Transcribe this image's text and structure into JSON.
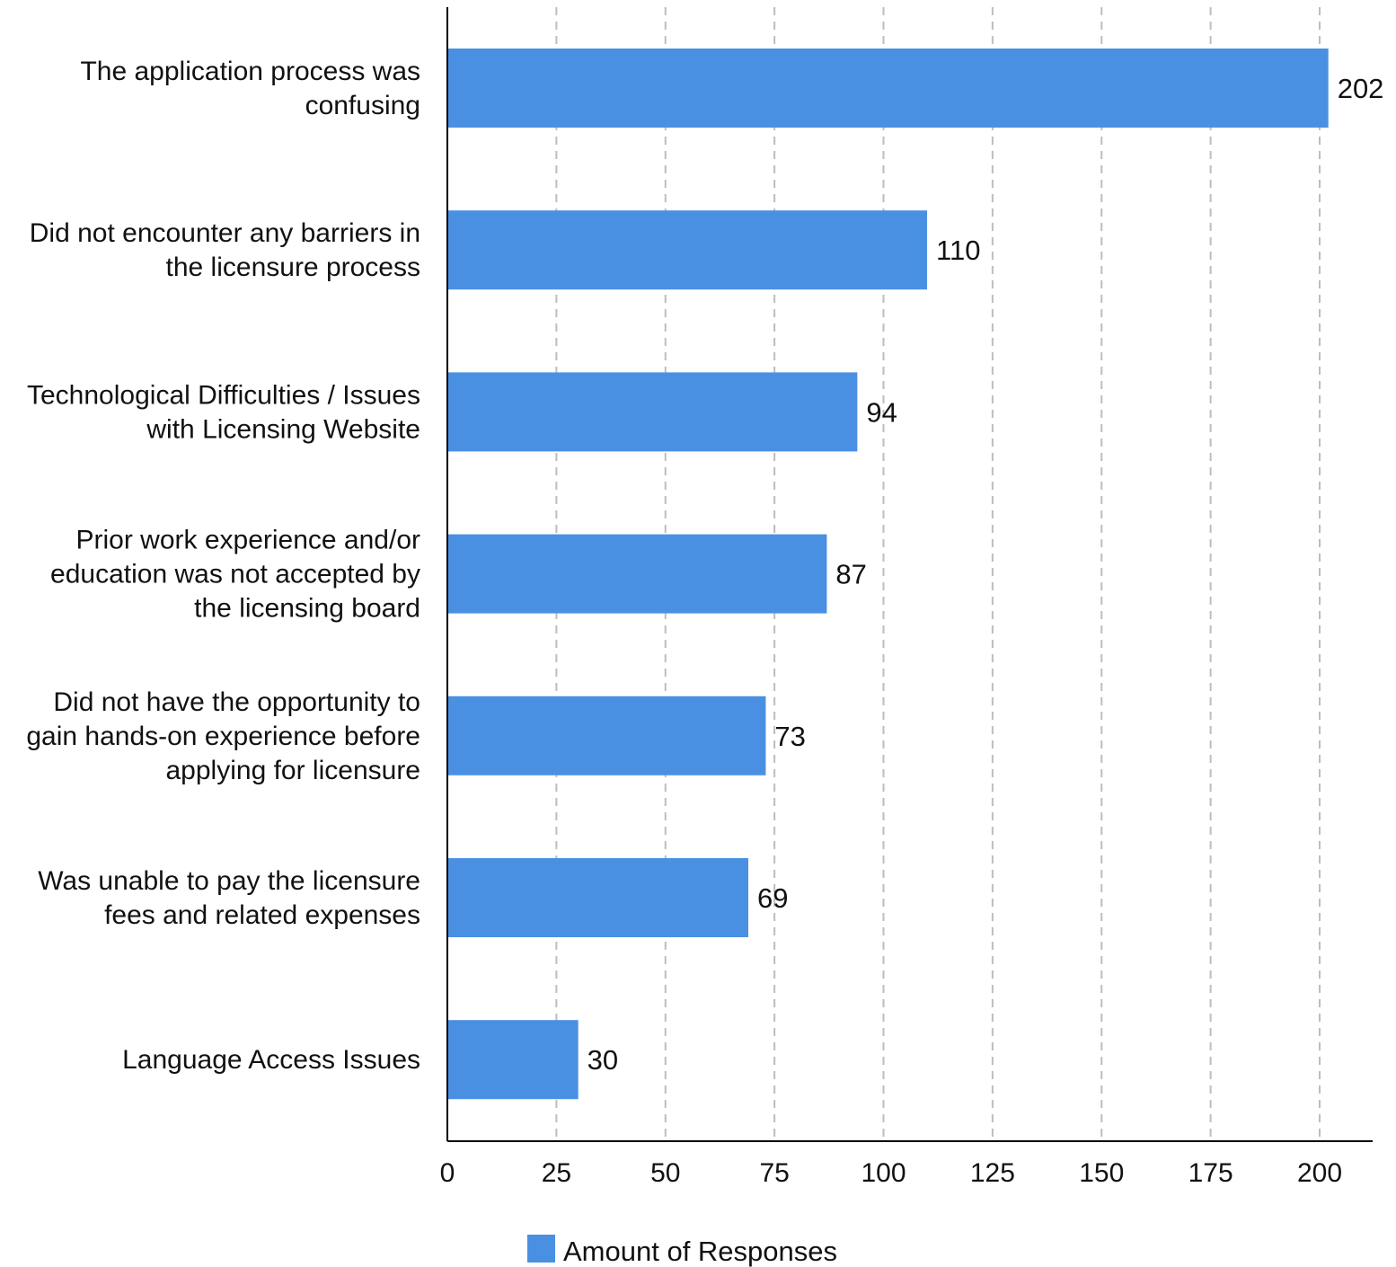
{
  "chart_data": {
    "type": "bar",
    "orientation": "horizontal",
    "categories": [
      [
        "The application process was",
        "confusing"
      ],
      [
        "Did not encounter any barriers in",
        "the licensure process"
      ],
      [
        "Technological Difficulties / Issues",
        "with Licensing Website"
      ],
      [
        "Prior work experience and/or",
        "education was not accepted by",
        "the licensing board"
      ],
      [
        "Did not have the opportunity to",
        "gain hands-on experience before",
        "applying for licensure"
      ],
      [
        "Was unable to pay the licensure",
        "fees and related expenses"
      ],
      [
        "Language Access Issues"
      ]
    ],
    "series": [
      {
        "name": "Amount of Responses",
        "color": "#4a90e2",
        "values": [
          202,
          110,
          94,
          87,
          73,
          69,
          30
        ]
      }
    ],
    "xticks": [
      0,
      25,
      50,
      75,
      100,
      125,
      150,
      175,
      200
    ],
    "xlim": [
      0,
      212
    ],
    "grid": true,
    "legend": "bottom",
    "data_labels": true
  }
}
